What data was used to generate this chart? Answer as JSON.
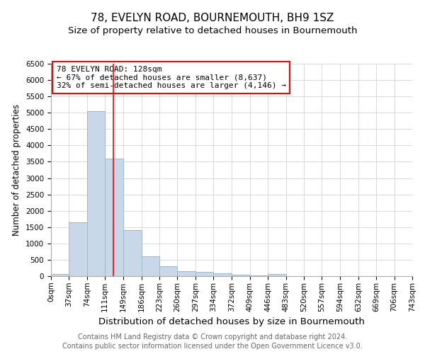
{
  "title": "78, EVELYN ROAD, BOURNEMOUTH, BH9 1SZ",
  "subtitle": "Size of property relative to detached houses in Bournemouth",
  "xlabel": "Distribution of detached houses by size in Bournemouth",
  "ylabel": "Number of detached properties",
  "footnote1": "Contains HM Land Registry data © Crown copyright and database right 2024.",
  "footnote2": "Contains public sector information licensed under the Open Government Licence v3.0.",
  "bin_labels": [
    "0sqm",
    "37sqm",
    "74sqm",
    "111sqm",
    "149sqm",
    "186sqm",
    "223sqm",
    "260sqm",
    "297sqm",
    "334sqm",
    "372sqm",
    "409sqm",
    "446sqm",
    "483sqm",
    "520sqm",
    "557sqm",
    "594sqm",
    "632sqm",
    "669sqm",
    "706sqm",
    "743sqm"
  ],
  "bin_edges": [
    0,
    37,
    74,
    111,
    149,
    186,
    223,
    260,
    297,
    334,
    372,
    409,
    446,
    483,
    520,
    557,
    594,
    632,
    669,
    706,
    743
  ],
  "bar_heights": [
    75,
    1650,
    5050,
    3600,
    1400,
    600,
    300,
    160,
    130,
    90,
    50,
    30,
    60,
    0,
    0,
    0,
    0,
    0,
    0,
    0
  ],
  "bar_color": "#c8d8e8",
  "bar_edge_color": "#a0b8cc",
  "red_line_x": 128,
  "ylim": [
    0,
    6500
  ],
  "yticks": [
    0,
    500,
    1000,
    1500,
    2000,
    2500,
    3000,
    3500,
    4000,
    4500,
    5000,
    5500,
    6000,
    6500
  ],
  "annotation_box_text": "78 EVELYN ROAD: 128sqm\n← 67% of detached houses are smaller (8,637)\n32% of semi-detached houses are larger (4,146) →",
  "title_fontsize": 11,
  "subtitle_fontsize": 9.5,
  "xlabel_fontsize": 9.5,
  "ylabel_fontsize": 8.5,
  "tick_fontsize": 7.5,
  "annotation_fontsize": 8,
  "footnote_fontsize": 7
}
